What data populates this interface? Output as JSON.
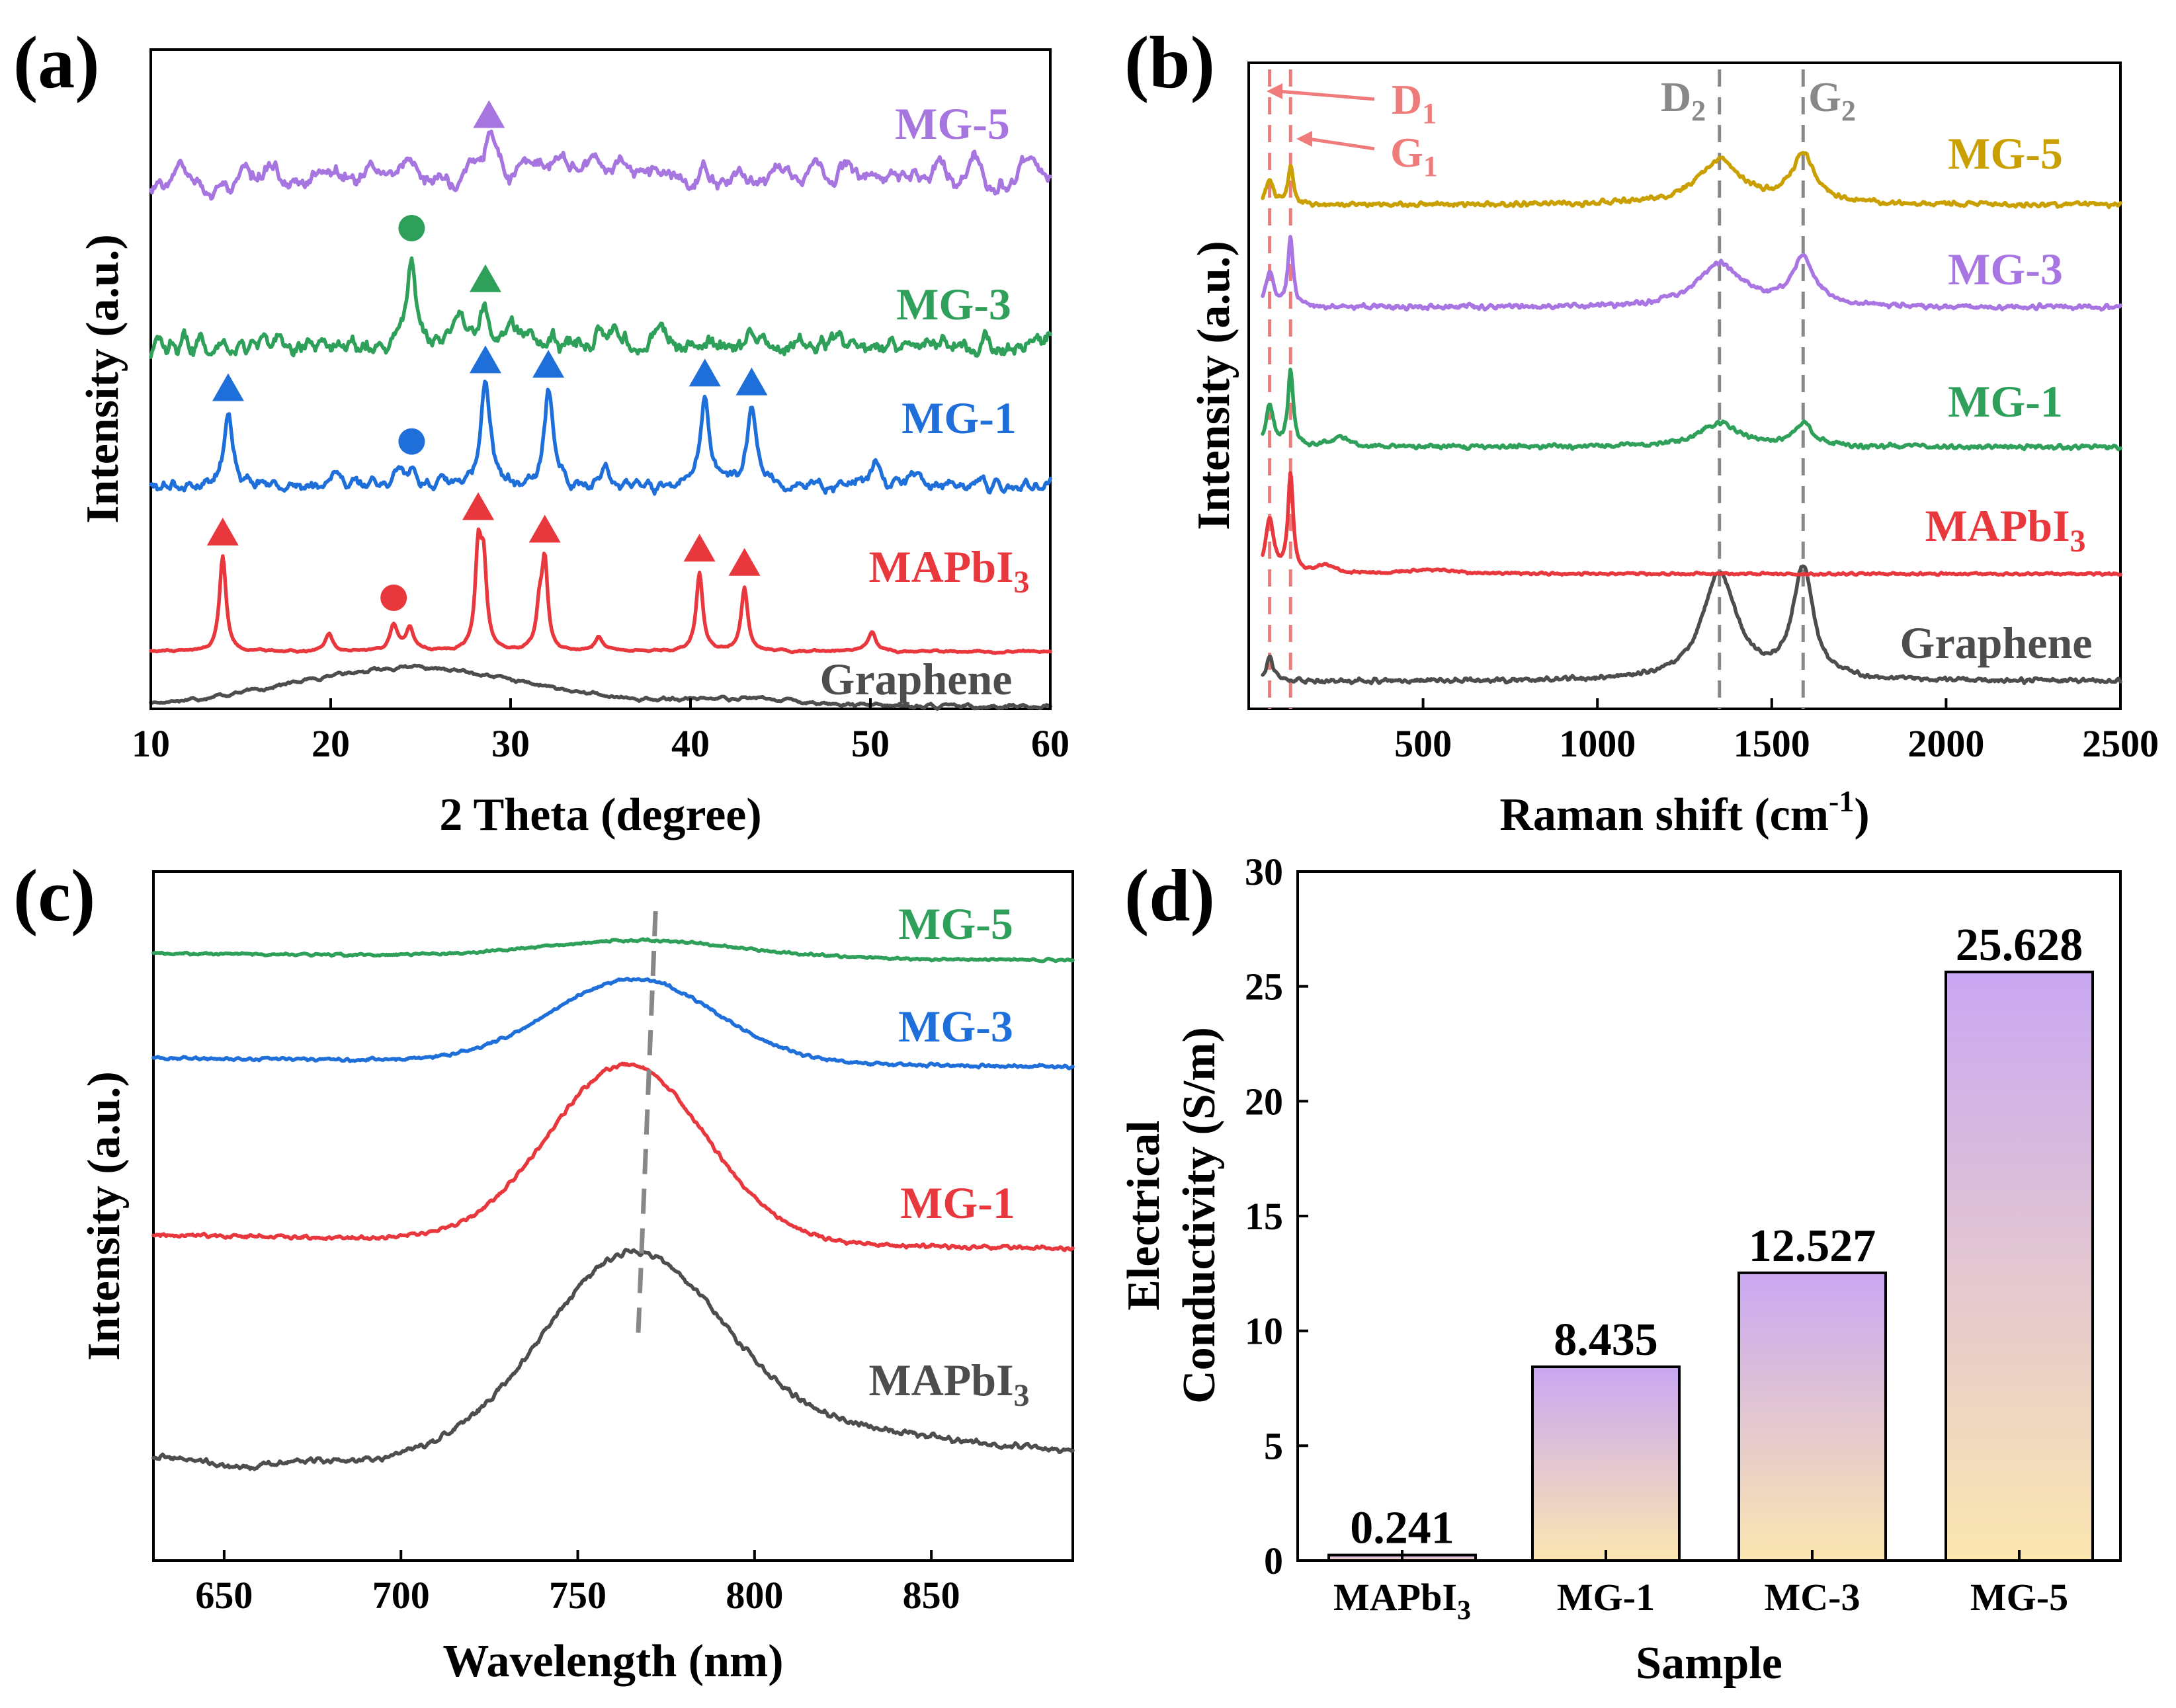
{
  "colors": {
    "graphene": "#4d4d4d",
    "mapbi3": "#e8383d",
    "mg1_xrd": "#1e6fd9",
    "mg3_xrd": "#2fa05a",
    "mg5_xrd": "#a675e0",
    "raman_mg5": "#c9a000",
    "raman_mg3": "#a875e3",
    "raman_mg1": "#2fa05a",
    "raman_guide_d1g1": "#ef7b7b",
    "raman_guide_d2g2": "#888888",
    "pl_mg5": "#2fa05a",
    "pl_mg3": "#1e6fd9",
    "pl_mg1": "#e8383d",
    "pl_mapbi3": "#4d4d4d",
    "bar_top": "#c9a7f2",
    "bar_bottom": "#fbe6b0"
  },
  "panels": {
    "a": {
      "label": "(a)"
    },
    "b": {
      "label": "(b)"
    },
    "c": {
      "label": "(c)"
    },
    "d": {
      "label": "(d)"
    }
  },
  "chart_data": [
    {
      "id": "a",
      "type": "line",
      "title": "",
      "xlabel": "2 Theta (degree)",
      "ylabel": "Intensity (a.u.)",
      "xlim": [
        10,
        60
      ],
      "xticks": [
        10,
        20,
        30,
        40,
        50,
        60
      ],
      "series": [
        {
          "name": "Graphene",
          "label": "Graphene",
          "color": "graphene",
          "broad": [
            [
              24.4,
              6.6,
              1.0
            ],
            [
              43.0,
              3.2,
              0.2
            ]
          ],
          "peaks": [],
          "noise": 0.05
        },
        {
          "name": "MAPbI3",
          "label": "MAPbI",
          "label_sub": "3",
          "color": "mapbi3",
          "broad": [],
          "peaks": [
            [
              14.0,
              0.22,
              4.0
            ],
            [
              19.9,
              0.25,
              0.7
            ],
            [
              23.5,
              0.25,
              1.1
            ],
            [
              24.4,
              0.25,
              1.0
            ],
            [
              28.2,
              0.2,
              4.0
            ],
            [
              28.5,
              0.2,
              3.4
            ],
            [
              31.6,
              0.2,
              1.6
            ],
            [
              31.9,
              0.2,
              3.6
            ],
            [
              34.9,
              0.25,
              0.6
            ],
            [
              40.5,
              0.22,
              3.3
            ],
            [
              43.0,
              0.22,
              2.7
            ],
            [
              50.1,
              0.25,
              0.8
            ]
          ],
          "noise": 0.05
        },
        {
          "name": "MG-1",
          "label": "MG-1",
          "color": "mg1_xrd",
          "broad": [],
          "peaks": [
            [
              14.3,
              0.3,
              3.3
            ],
            [
              20.2,
              0.3,
              0.7
            ],
            [
              23.8,
              0.3,
              0.8
            ],
            [
              24.5,
              0.3,
              0.7
            ],
            [
              28.6,
              0.3,
              4.5
            ],
            [
              32.1,
              0.3,
              4.3
            ],
            [
              35.3,
              0.3,
              0.7
            ],
            [
              40.8,
              0.3,
              3.9
            ],
            [
              43.4,
              0.3,
              3.5
            ],
            [
              50.3,
              0.3,
              1.0
            ],
            [
              52.6,
              0.4,
              0.5
            ]
          ],
          "noise": 0.3
        },
        {
          "name": "MG-3",
          "label": "MG-3",
          "color": "mg3_xrd",
          "broad": [],
          "peaks": [
            [
              24.5,
              0.3,
              4.6
            ],
            [
              27.2,
              0.3,
              1.4
            ],
            [
              28.6,
              0.3,
              2.0
            ],
            [
              30.0,
              0.3,
              1.2
            ],
            [
              35.5,
              0.4,
              0.8
            ],
            [
              38.4,
              0.3,
              1.0
            ],
            [
              48.4,
              0.4,
              0.6
            ]
          ],
          "noise": 0.55
        },
        {
          "name": "MG-5",
          "label": "MG-5",
          "color": "mg5_xrd",
          "broad": [
            [
              34.0,
              2.6,
              1.0
            ]
          ],
          "peaks": [
            [
              28.8,
              0.35,
              2.0
            ]
          ],
          "noise": 1.3
        }
      ],
      "markers": [
        {
          "series": "MAPbI3",
          "shape": "triangle",
          "x": [
            14.0,
            28.2,
            31.9,
            40.5,
            43.0
          ]
        },
        {
          "series": "MAPbI3",
          "shape": "circle",
          "x": [
            23.5
          ]
        },
        {
          "series": "MG-1",
          "shape": "triangle",
          "x": [
            14.3,
            28.6,
            32.1,
            40.8,
            43.4
          ]
        },
        {
          "series": "MG-1",
          "shape": "circle",
          "x": [
            24.5
          ]
        },
        {
          "series": "MG-3",
          "shape": "triangle",
          "x": [
            28.6
          ]
        },
        {
          "series": "MG-3",
          "shape": "circle",
          "x": [
            24.5
          ]
        },
        {
          "series": "MG-5",
          "shape": "triangle",
          "x": [
            28.8
          ]
        }
      ]
    },
    {
      "id": "b",
      "type": "line",
      "title": "",
      "xlabel": "Raman shift (cm",
      "xlabel_sup": "-1",
      "xlabel_end": ")",
      "ylabel": "Intensity (a.u.)",
      "xlim": [
        0,
        2500
      ],
      "xticks": [
        500,
        1000,
        1500,
        2000,
        2500
      ],
      "guides": [
        {
          "x": 60,
          "label": "D",
          "sub": "1",
          "color": "raman_guide_d1g1"
        },
        {
          "x": 120,
          "label": "G",
          "sub": "1",
          "color": "raman_guide_d1g1"
        },
        {
          "x": 1350,
          "label": "D",
          "sub": "2",
          "color": "raman_guide_d2g2"
        },
        {
          "x": 1590,
          "label": "G",
          "sub": "2",
          "color": "raman_guide_d2g2"
        }
      ],
      "series": [
        {
          "name": "Graphene",
          "label": "Graphene",
          "color": "graphene",
          "peaks": [
            [
              1350,
              60,
              2.6
            ],
            [
              1590,
              35,
              2.7
            ],
            [
              60,
              12,
              0.6
            ]
          ],
          "noise": 0.04
        },
        {
          "name": "MAPbI3",
          "label": "MAPbI",
          "label_sub": "3",
          "color": "mapbi3",
          "peaks": [
            [
              60,
              14,
              2.0
            ],
            [
              120,
              9,
              3.6
            ],
            [
              220,
              30,
              0.3
            ],
            [
              520,
              80,
              0.15
            ]
          ],
          "noise": 0.03
        },
        {
          "name": "MG-1",
          "label": "MG-1",
          "color": "raman_mg1",
          "peaks": [
            [
              60,
              14,
              2.0
            ],
            [
              120,
              9,
              3.8
            ],
            [
              260,
              30,
              0.5
            ],
            [
              1350,
              70,
              1.2
            ],
            [
              1590,
              35,
              1.1
            ]
          ],
          "noise": 0.08
        },
        {
          "name": "MG-3",
          "label": "MG-3",
          "color": "raman_mg3",
          "peaks": [
            [
              60,
              14,
              1.6
            ],
            [
              120,
              9,
              3.0
            ],
            [
              1350,
              80,
              1.9
            ],
            [
              1590,
              40,
              2.1
            ]
          ],
          "noise": 0.08
        },
        {
          "name": "MG-5",
          "label": "MG-5",
          "color": "raman_mg5",
          "peaks": [
            [
              60,
              14,
              1.1
            ],
            [
              120,
              9,
              1.7
            ],
            [
              1350,
              80,
              2.0
            ],
            [
              1590,
              40,
              2.2
            ]
          ],
          "noise": 0.08
        }
      ]
    },
    {
      "id": "c",
      "type": "line",
      "title": "",
      "xlabel": "Wavelength (nm)",
      "ylabel": "Intensity (a.u.)",
      "xlim": [
        630,
        890
      ],
      "xticks": [
        650,
        700,
        750,
        800,
        850
      ],
      "guide": {
        "x_start": 767,
        "x_end": 772,
        "color": "#888888"
      },
      "series": [
        {
          "name": "MAPbI3",
          "label": "MAPbI",
          "label_sub": "3",
          "color": "pl_mapbi3",
          "center": 765,
          "width": 42,
          "height": 7.0,
          "noise": 0.15
        },
        {
          "name": "MG-1",
          "label": "MG-1",
          "color": "pl_mg1",
          "center": 764,
          "width": 40,
          "height": 6.4,
          "noise": 0.1
        },
        {
          "name": "MG-3",
          "label": "MG-3",
          "color": "pl_mg3",
          "center": 766,
          "width": 42,
          "height": 3.0,
          "noise": 0.08
        },
        {
          "name": "MG-5",
          "label": "MG-5",
          "color": "pl_mg5",
          "center": 768,
          "width": 50,
          "height": 0.6,
          "noise": 0.06
        }
      ]
    },
    {
      "id": "d",
      "type": "bar",
      "title": "",
      "xlabel": "Sample",
      "ylabel": "Electrical",
      "ylabel2": "Conductivity (S/m)",
      "ylim": [
        0,
        30
      ],
      "yticks": [
        0,
        5,
        10,
        15,
        20,
        25,
        30
      ],
      "categories": [
        "MAPbI3",
        "MG-1",
        "MC-3",
        "MG-5"
      ],
      "category_labels": [
        {
          "main": "MAPbI",
          "sub": "3"
        },
        {
          "main": "MG-1",
          "sub": ""
        },
        {
          "main": "MC-3",
          "sub": ""
        },
        {
          "main": "MG-5",
          "sub": ""
        }
      ],
      "values": [
        0.241,
        8.435,
        12.527,
        25.628
      ],
      "value_labels": [
        "0.241",
        "8.435",
        "12.527",
        "25.628"
      ]
    }
  ]
}
